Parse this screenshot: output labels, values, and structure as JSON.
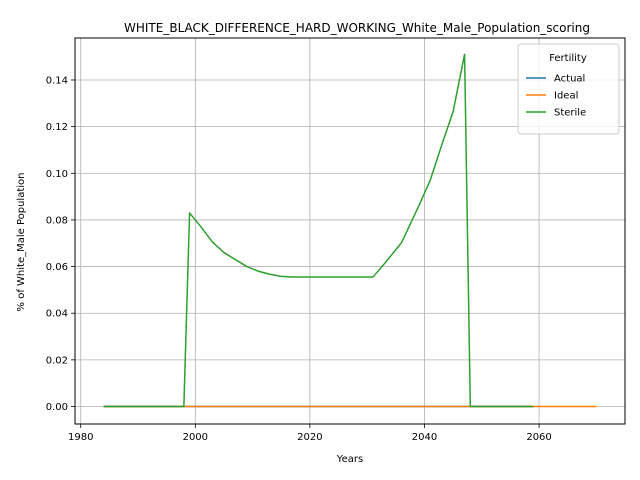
{
  "chart_data": {
    "type": "line",
    "title": "WHITE_BLACK_DIFFERENCE_HARD_WORKING_White_Male_Population_scoring",
    "xlabel": "Years",
    "ylabel": "% of White_Male Population",
    "xlim": [
      1979,
      2075
    ],
    "ylim": [
      -0.0075,
      0.158
    ],
    "x_ticks": [
      1980,
      2000,
      2020,
      2040,
      2060
    ],
    "x_tick_labels": [
      "1980",
      "2000",
      "2020",
      "2040",
      "2060"
    ],
    "y_ticks": [
      0.0,
      0.02,
      0.04,
      0.06,
      0.08,
      0.1,
      0.12,
      0.14
    ],
    "y_tick_labels": [
      "0.00",
      "0.02",
      "0.04",
      "0.06",
      "0.08",
      "0.10",
      "0.12",
      "0.14"
    ],
    "grid": true,
    "legend": {
      "title": "Fertility",
      "placement": "upper-right"
    },
    "series": [
      {
        "name": "Actual",
        "color": "#1f77b4",
        "x": [
          1984,
          2059
        ],
        "y": [
          0.0,
          0.0
        ]
      },
      {
        "name": "Ideal",
        "color": "#ff7f0e",
        "x": [
          1984,
          2070
        ],
        "y": [
          0.0,
          0.0
        ]
      },
      {
        "name": "Sterile",
        "color": "#2ca02c",
        "x": [
          1984,
          1998,
          1999,
          2001,
          2003,
          2005,
          2007,
          2009,
          2011,
          2013,
          2015,
          2017,
          2020,
          2025,
          2031,
          2033,
          2036,
          2037,
          2039,
          2041,
          2043,
          2045,
          2047,
          2048,
          2059
        ],
        "y": [
          0.0,
          0.0,
          0.083,
          0.077,
          0.0705,
          0.066,
          0.063,
          0.06,
          0.058,
          0.0567,
          0.0558,
          0.0555,
          0.0555,
          0.0555,
          0.0555,
          0.0612,
          0.0703,
          0.0755,
          0.086,
          0.097,
          0.112,
          0.1265,
          0.151,
          0.0,
          0.0
        ]
      }
    ]
  }
}
